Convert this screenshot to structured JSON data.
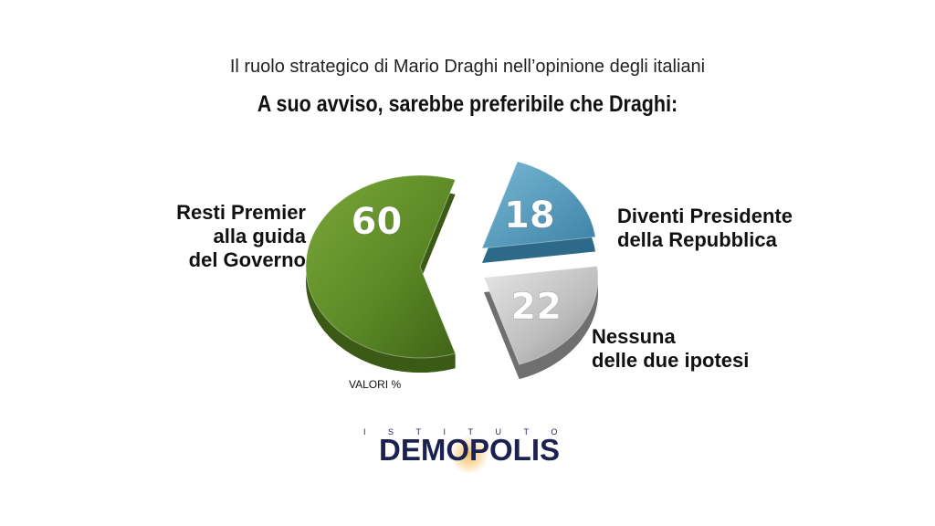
{
  "header": {
    "subtitle": "Il ruolo strategico di Mario Draghi nell’opinione degli italiani",
    "question": "A suo avviso, sarebbe preferibile che Draghi:"
  },
  "chart_data": {
    "type": "pie",
    "title": "A suo avviso, sarebbe preferibile che Draghi:",
    "unit_note": "VALORI %",
    "slices": [
      {
        "label": "Resti Premier alla guida del Governo",
        "label_lines": [
          "Resti Premier",
          "alla guida",
          "del Governo"
        ],
        "value": 60,
        "color": "#5e8a2a"
      },
      {
        "label": "Diventi Presidente della Repubblica",
        "label_lines": [
          "Diventi Presidente",
          "della Repubblica"
        ],
        "value": 18,
        "color": "#4b93b6"
      },
      {
        "label": "Nessuna delle due ipotesi",
        "label_lines": [
          "Nessuna",
          "delle due ipotesi"
        ],
        "value": 22,
        "color": "#a9a9a9"
      }
    ]
  },
  "logo": {
    "top": "ISTITUTO",
    "word": "DEMOPOLIS"
  }
}
